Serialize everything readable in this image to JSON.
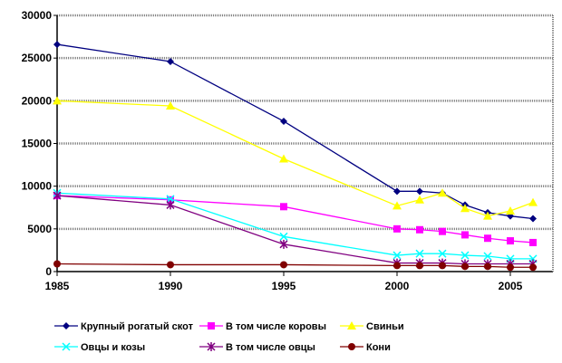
{
  "chart_data": {
    "type": "line",
    "title": "",
    "xlabel": "",
    "ylabel": "",
    "x": [
      1985,
      1990,
      1995,
      2000,
      2001,
      2002,
      2003,
      2004,
      2005,
      2006
    ],
    "xlim": [
      1985,
      2007
    ],
    "ylim": [
      0,
      30000
    ],
    "xticks": [
      "1985",
      "1990",
      "1995",
      "2000",
      "2005"
    ],
    "yticks": [
      "0",
      "5000",
      "10000",
      "15000",
      "20000",
      "25000",
      "30000"
    ],
    "grid": true,
    "legend_placement": "bottom",
    "series": [
      {
        "name": "Крупный рогатый  скот",
        "color": "#000080",
        "marker": "diamond",
        "values": [
          26600,
          24600,
          17600,
          9400,
          9400,
          9200,
          7800,
          6900,
          6500,
          6200
        ]
      },
      {
        "name": "В том числе коровы",
        "color": "#ff00ff",
        "marker": "square",
        "values": [
          8900,
          8400,
          7600,
          5000,
          4900,
          4700,
          4300,
          3900,
          3600,
          3400
        ]
      },
      {
        "name": "Свиньи",
        "color": "#ffff00",
        "marker": "triangle",
        "values": [
          20000,
          19400,
          13200,
          7700,
          8400,
          9200,
          7400,
          6500,
          7100,
          8100
        ]
      },
      {
        "name": "Овцы и козы",
        "color": "#00ffff",
        "marker": "x",
        "values": [
          9200,
          8500,
          4100,
          1900,
          2100,
          2100,
          1900,
          1800,
          1500,
          1500
        ]
      },
      {
        "name": "В том числе овцы",
        "color": "#800080",
        "marker": "star",
        "values": [
          8900,
          7800,
          3200,
          1000,
          1000,
          1000,
          900,
          900,
          900,
          900
        ]
      },
      {
        "name": "Кони",
        "color": "#800000",
        "marker": "circle",
        "values": [
          900,
          800,
          800,
          700,
          700,
          700,
          600,
          600,
          500,
          500
        ]
      }
    ]
  }
}
